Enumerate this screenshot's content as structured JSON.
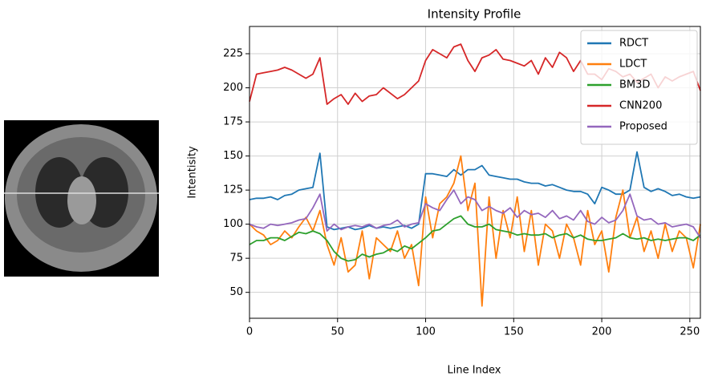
{
  "chart_data": {
    "type": "line",
    "title": "Intensity Profile",
    "x_label": "Line Index",
    "y_label": "Intentisity",
    "x": [
      0,
      4,
      8,
      12,
      16,
      20,
      24,
      28,
      32,
      36,
      40,
      44,
      48,
      52,
      56,
      60,
      64,
      68,
      72,
      76,
      80,
      84,
      88,
      92,
      96,
      100,
      104,
      108,
      112,
      116,
      120,
      124,
      128,
      132,
      136,
      140,
      144,
      148,
      152,
      156,
      160,
      164,
      168,
      172,
      176,
      180,
      184,
      188,
      192,
      196,
      200,
      204,
      208,
      212,
      216,
      220,
      224,
      228,
      232,
      236,
      240,
      244,
      248,
      252,
      256
    ],
    "series": [
      {
        "name": "RDCT",
        "color": "#1f77b4",
        "values": [
          118,
          119,
          119,
          120,
          118,
          121,
          122,
          125,
          126,
          127,
          152,
          98,
          96,
          97,
          98,
          96,
          97,
          99,
          97,
          98,
          97,
          98,
          99,
          97,
          100,
          137,
          137,
          136,
          135,
          140,
          136,
          140,
          140,
          143,
          136,
          135,
          134,
          133,
          133,
          131,
          130,
          130,
          128,
          129,
          127,
          125,
          124,
          124,
          122,
          115,
          127,
          125,
          122,
          122,
          125,
          153,
          127,
          124,
          126,
          124,
          121,
          122,
          120,
          119,
          120
        ]
      },
      {
        "name": "LDCT",
        "color": "#ff7f0e",
        "values": [
          100,
          95,
          92,
          85,
          88,
          95,
          90,
          98,
          105,
          95,
          110,
          85,
          70,
          90,
          65,
          70,
          95,
          60,
          90,
          85,
          80,
          95,
          75,
          85,
          55,
          120,
          90,
          115,
          120,
          130,
          150,
          110,
          130,
          40,
          120,
          75,
          110,
          90,
          120,
          80,
          110,
          70,
          100,
          95,
          75,
          100,
          90,
          70,
          110,
          85,
          95,
          65,
          105,
          125,
          90,
          105,
          80,
          95,
          75,
          100,
          80,
          95,
          90,
          68,
          100
        ]
      },
      {
        "name": "BM3D",
        "color": "#2ca02c",
        "values": [
          85,
          88,
          88,
          90,
          90,
          88,
          91,
          94,
          93,
          95,
          93,
          88,
          80,
          75,
          73,
          74,
          78,
          76,
          78,
          79,
          82,
          80,
          84,
          82,
          86,
          90,
          95,
          96,
          100,
          104,
          106,
          100,
          98,
          98,
          100,
          96,
          95,
          94,
          92,
          93,
          92,
          92,
          93,
          90,
          92,
          93,
          90,
          92,
          89,
          88,
          88,
          89,
          90,
          93,
          90,
          89,
          90,
          88,
          89,
          88,
          89,
          90,
          90,
          88,
          92
        ]
      },
      {
        "name": "CNN200",
        "color": "#d62728",
        "values": [
          190,
          210,
          211,
          212,
          213,
          215,
          213,
          210,
          207,
          210,
          222,
          188,
          192,
          195,
          188,
          196,
          190,
          194,
          195,
          200,
          196,
          192,
          195,
          200,
          205,
          220,
          228,
          225,
          222,
          230,
          232,
          220,
          212,
          222,
          224,
          228,
          221,
          220,
          218,
          216,
          220,
          210,
          222,
          215,
          226,
          222,
          212,
          220,
          210,
          210,
          206,
          214,
          212,
          208,
          210,
          204,
          207,
          210,
          200,
          208,
          205,
          208,
          210,
          212,
          198
        ]
      },
      {
        "name": "Proposed",
        "color": "#9467bd",
        "values": [
          100,
          98,
          97,
          100,
          99,
          100,
          101,
          103,
          104,
          112,
          122,
          95,
          100,
          96,
          98,
          99,
          98,
          100,
          97,
          99,
          100,
          103,
          98,
          100,
          101,
          115,
          112,
          110,
          118,
          125,
          115,
          120,
          118,
          110,
          113,
          110,
          108,
          112,
          105,
          110,
          107,
          108,
          105,
          110,
          104,
          106,
          103,
          110,
          102,
          100,
          105,
          101,
          103,
          110,
          122,
          106,
          103,
          104,
          100,
          101,
          98,
          99,
          100,
          98,
          90
        ]
      }
    ],
    "xlim": [
      0,
      256
    ],
    "ylim": [
      31,
      245
    ],
    "xticks": [
      0,
      50,
      100,
      150,
      200,
      250
    ],
    "yticks": [
      50,
      75,
      100,
      125,
      150,
      175,
      200,
      225
    ],
    "grid": true,
    "legend": "upper right"
  }
}
